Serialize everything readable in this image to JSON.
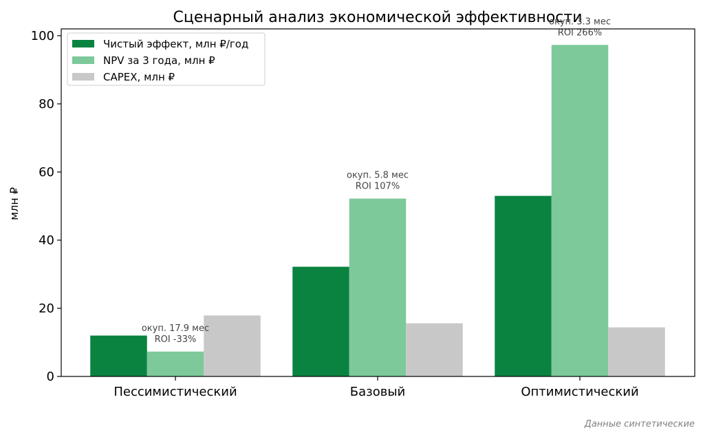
{
  "chart_data": {
    "type": "bar",
    "title": "Сценарный анализ экономической эффективности",
    "ylabel": "млн ₽",
    "xlabel": "",
    "categories": [
      "Пессимистический",
      "Базовый",
      "Оптимистический"
    ],
    "ylim": [
      0,
      102
    ],
    "yticks": [
      0,
      20,
      40,
      60,
      80,
      100
    ],
    "grid": false,
    "legend_position": "top-left",
    "series": [
      {
        "name": "Чистый эффект, млн ₽/год",
        "color": "#0a8341",
        "values": [
          12.0,
          32.2,
          53.0
        ]
      },
      {
        "name": "NPV за 3 года, млн ₽",
        "color": "#7dc99a",
        "values": [
          7.3,
          52.2,
          97.3
        ]
      },
      {
        "name": "CAPEX, млн ₽",
        "color": "#c8c8c8",
        "values": [
          17.9,
          15.6,
          14.4
        ]
      }
    ],
    "annotations": [
      {
        "category_index": 0,
        "lines": [
          "окуп. 17.9 мес",
          "ROI -33%"
        ]
      },
      {
        "category_index": 1,
        "lines": [
          "окуп. 5.8 мес",
          "ROI 107%"
        ]
      },
      {
        "category_index": 2,
        "lines": [
          "окуп. 3.3 мес",
          "ROI 266%"
        ]
      }
    ],
    "footnote": "Данные синтетические"
  }
}
